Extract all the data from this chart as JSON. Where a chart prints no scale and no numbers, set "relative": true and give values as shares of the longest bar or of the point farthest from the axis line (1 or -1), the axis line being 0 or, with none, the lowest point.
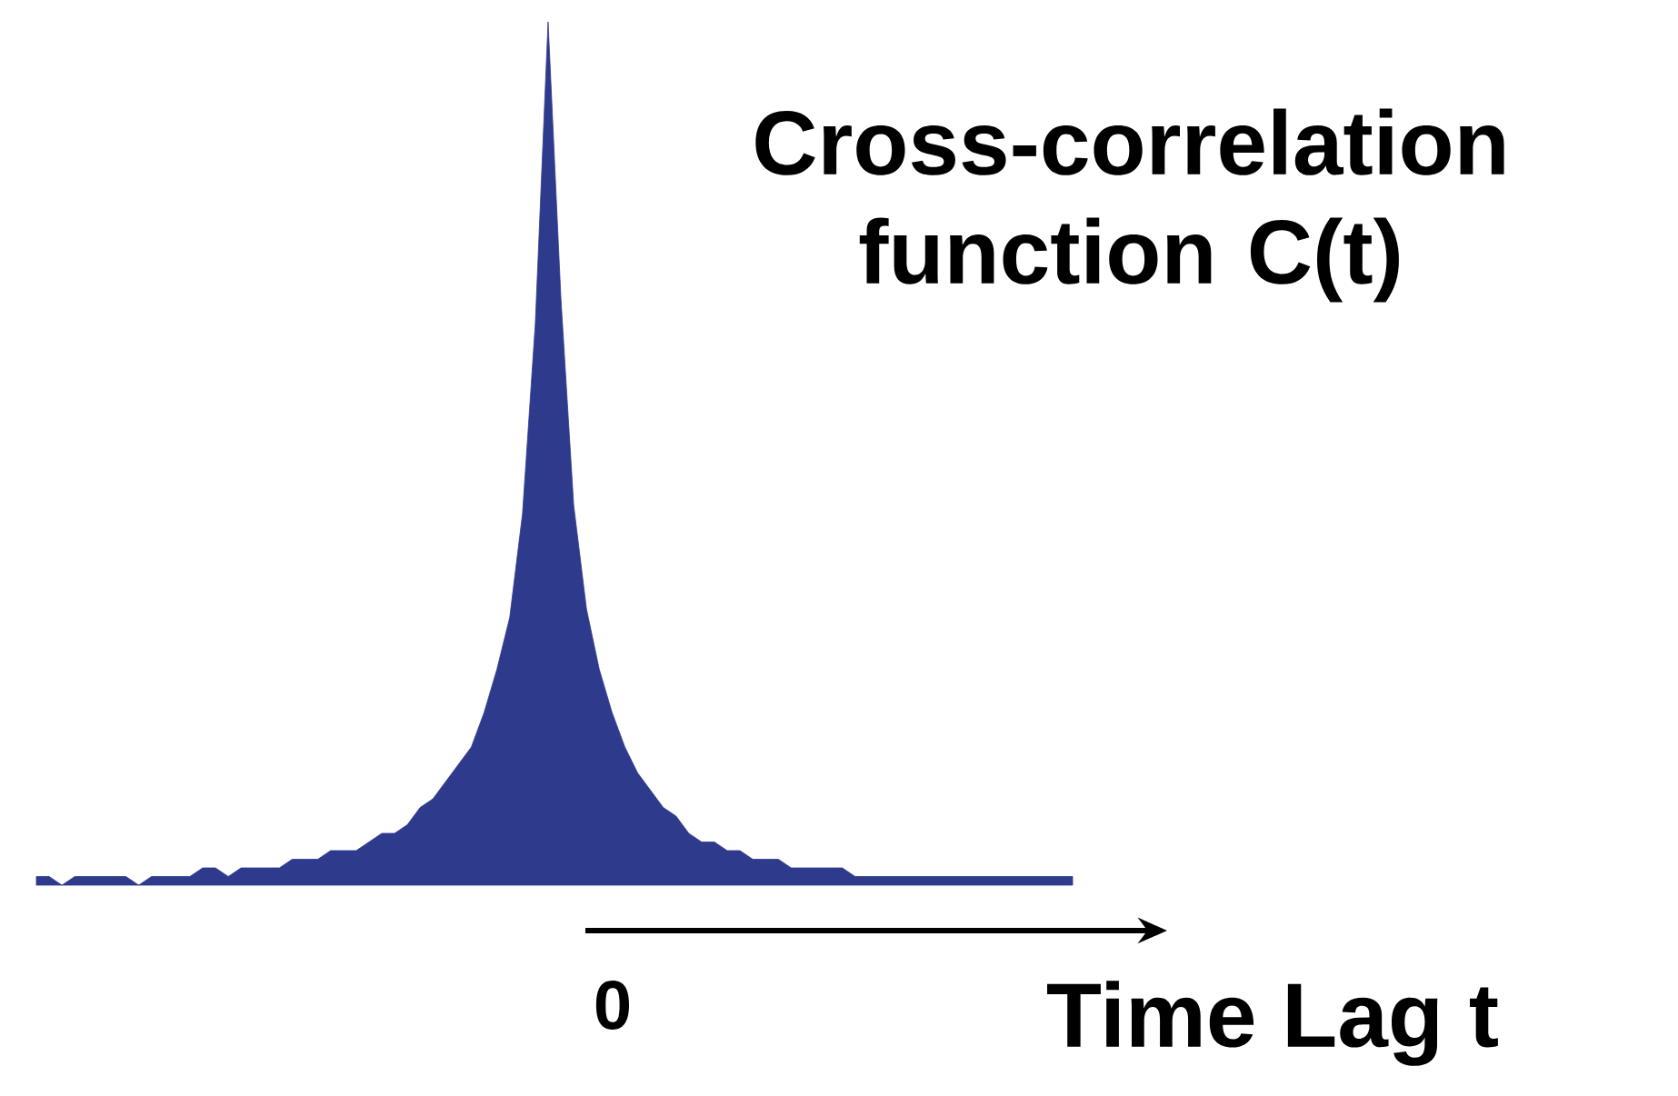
{
  "chart_data": {
    "type": "area",
    "title": "Cross-correlation function C(t)",
    "xlabel": "Time Lag t",
    "annotations": [
      "0"
    ],
    "relative": true,
    "color": "#2e3a8c",
    "categories": [
      null,
      null,
      null,
      null,
      null,
      null,
      null,
      null,
      null,
      null,
      null,
      null,
      null,
      null,
      null,
      null,
      null,
      null,
      null,
      null,
      null,
      null,
      null,
      null,
      null,
      null,
      null,
      null,
      null,
      null,
      null,
      null,
      null,
      null,
      null,
      null,
      null,
      null,
      null,
      null,
      null,
      null,
      null,
      null,
      null,
      null,
      null,
      null,
      null,
      null,
      null,
      null,
      null,
      null,
      null,
      null,
      null,
      null,
      null,
      null,
      null,
      null,
      null,
      null,
      null,
      null,
      null,
      null,
      null,
      null,
      null,
      null,
      null,
      null,
      null,
      null,
      null,
      null,
      null,
      null,
      null,
      null
    ],
    "values": [
      0.01,
      0.01,
      0,
      0.01,
      0.01,
      0.01,
      0.01,
      0.01,
      0,
      0.01,
      0.01,
      0.01,
      0.01,
      0.02,
      0.02,
      0.01,
      0.02,
      0.02,
      0.02,
      0.02,
      0.03,
      0.03,
      0.03,
      0.04,
      0.04,
      0.04,
      0.05,
      0.06,
      0.06,
      0.07,
      0.09,
      0.1,
      0.12,
      0.14,
      0.16,
      0.2,
      0.25,
      0.31,
      0.43,
      0.65,
      1,
      0.68,
      0.44,
      0.32,
      0.25,
      0.2,
      0.16,
      0.13,
      0.11,
      0.09,
      0.08,
      0.06,
      0.05,
      0.05,
      0.04,
      0.04,
      0.03,
      0.03,
      0.03,
      0.02,
      0.02,
      0.02,
      0.02,
      0.02,
      0.01,
      0.01,
      0.01,
      0.01,
      0.01,
      0.01,
      0.01,
      0.01,
      0.01,
      0.01,
      0.01,
      0.01,
      0.01,
      0.01,
      0.01,
      0.01,
      0.01,
      0.01
    ]
  }
}
